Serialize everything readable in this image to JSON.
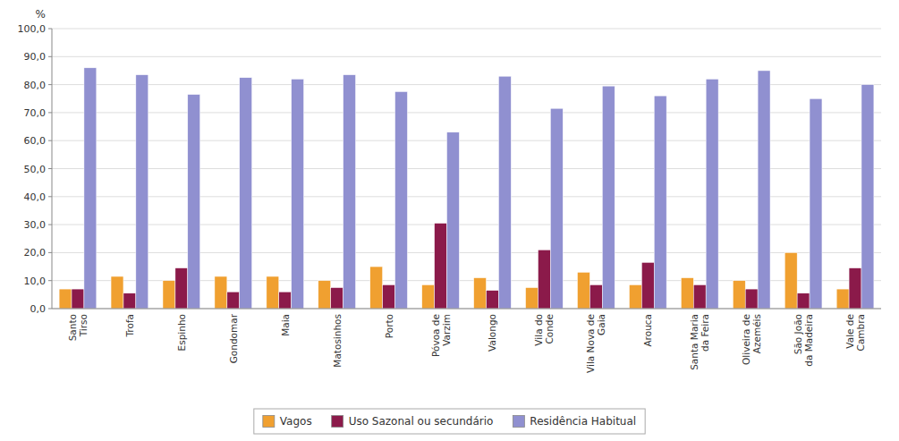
{
  "chart_data": {
    "type": "bar",
    "y_label": "%",
    "categories": [
      "Santo\nTirso",
      "Trofa",
      "Espinho",
      "Gondomar",
      "Maia",
      "Matosinhos",
      "Porto",
      "Póvoa de\nVarzim",
      "Valongo",
      "Vila do\nConde",
      "Vila Nova de\nGaia",
      "Arouca",
      "Santa Maria\nda Feira",
      "Oliveira de\nAzeméis",
      "São João\nda Madeira",
      "Vale de\nCambra"
    ],
    "series": [
      {
        "name": "Vagos",
        "color": "#F0A030",
        "values": [
          7.0,
          11.5,
          10.0,
          11.5,
          11.5,
          10.0,
          15.0,
          8.5,
          11.0,
          7.5,
          13.0,
          8.5,
          11.0,
          10.0,
          20.0,
          7.0
        ]
      },
      {
        "name": "Uso Sazonal ou secundário",
        "color": "#8B1A4A",
        "values": [
          7.0,
          5.5,
          14.5,
          6.0,
          6.0,
          7.5,
          8.5,
          30.5,
          6.5,
          21.0,
          8.5,
          16.5,
          8.5,
          7.0,
          5.5,
          14.5
        ]
      },
      {
        "name": "Residência Habitual",
        "color": "#9090D0",
        "values": [
          86.0,
          83.5,
          76.5,
          82.5,
          82.0,
          83.5,
          77.5,
          63.0,
          83.0,
          71.5,
          79.5,
          76.0,
          82.0,
          85.0,
          75.0,
          80.0
        ]
      }
    ],
    "ylim": [
      0,
      100
    ],
    "yticks": [
      {
        "value": 0,
        "label": "0,0"
      },
      {
        "value": 10,
        "label": "10,0"
      },
      {
        "value": 20,
        "label": "20,0"
      },
      {
        "value": 30,
        "label": "30,0"
      },
      {
        "value": 40,
        "label": "40,0"
      },
      {
        "value": 50,
        "label": "50,0"
      },
      {
        "value": 60,
        "label": "60,0"
      },
      {
        "value": 70,
        "label": "70,0"
      },
      {
        "value": 80,
        "label": "80,0"
      },
      {
        "value": 90,
        "label": "90,0"
      },
      {
        "value": 100,
        "label": "100,0"
      }
    ],
    "grid": true,
    "legend": "bottom"
  }
}
